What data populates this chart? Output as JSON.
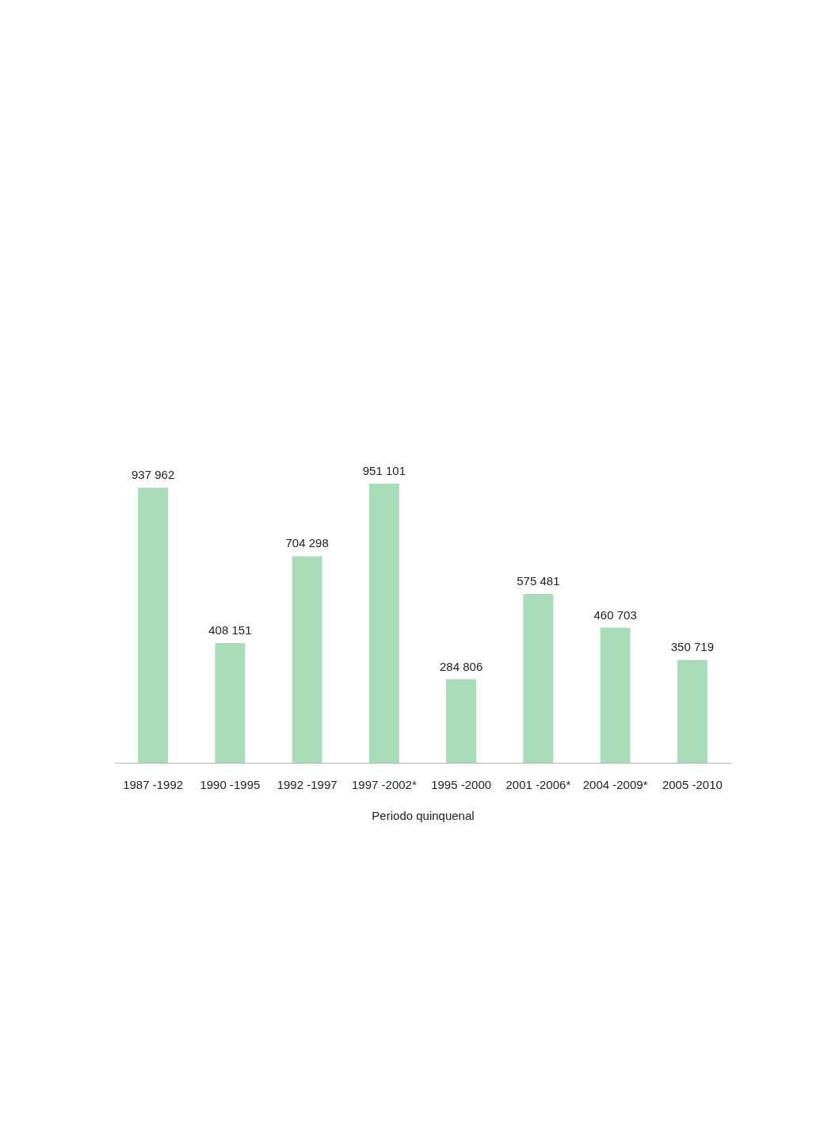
{
  "chart_data": {
    "type": "bar",
    "xlabel": "Periodo quinquenal",
    "categories": [
      "1987 -1992",
      "1990 -1995",
      "1992 -1997",
      "1997 -2002*",
      "1995 -2000",
      "2001 -2006*",
      "2004 -2009*",
      "2005 -2010"
    ],
    "values": [
      937962,
      408151,
      704298,
      951101,
      284806,
      575481,
      460703,
      350719
    ],
    "value_labels": [
      "937 962",
      "408 151",
      "704 298",
      "951 101",
      "284 806",
      "575 481",
      "460 703",
      "350 719"
    ],
    "color": "#a9dcb8",
    "tick_labels": "x"
  }
}
